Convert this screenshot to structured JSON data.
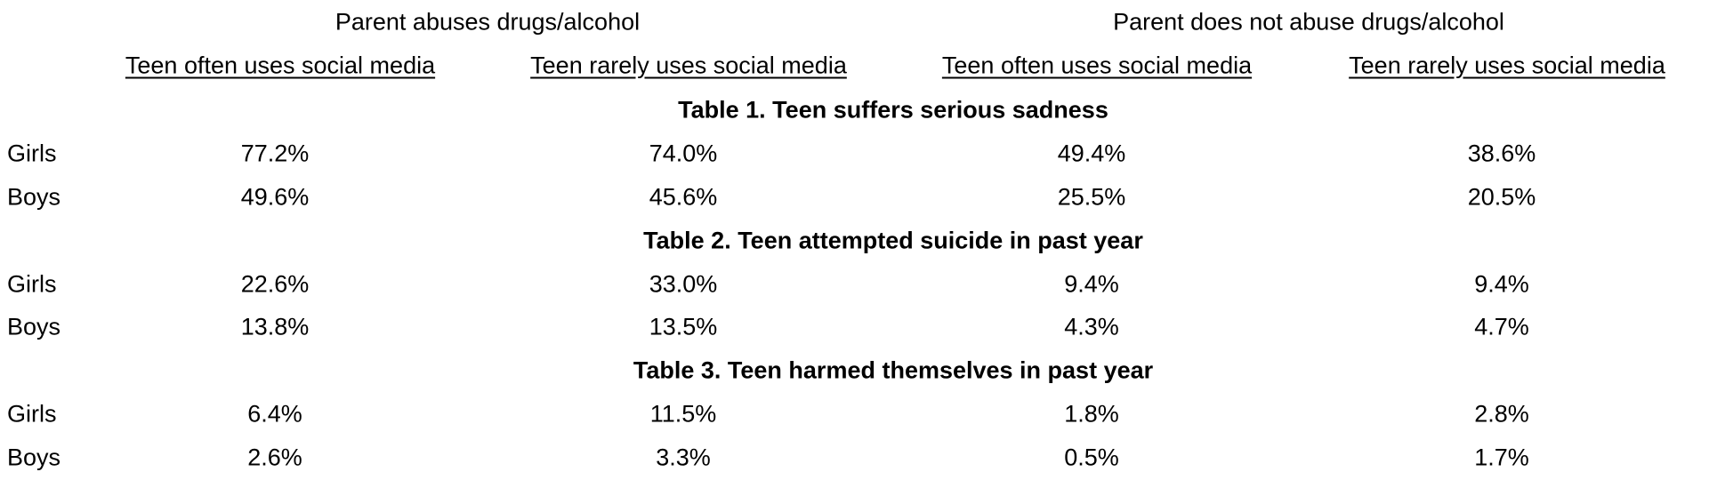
{
  "groups": [
    "Parent abuses drugs/alcohol",
    "Parent does not abuse drugs/alcohol"
  ],
  "columns": [
    "Teen often uses social media",
    "Teen rarely uses social media",
    "Teen often uses social media",
    "Teen rarely uses social media"
  ],
  "sections": [
    {
      "title": "Table 1. Teen suffers serious sadness",
      "rows": [
        {
          "label": "Girls",
          "values": [
            "77.2%",
            "74.0%",
            "49.4%",
            "38.6%"
          ]
        },
        {
          "label": "Boys",
          "values": [
            "49.6%",
            "45.6%",
            "25.5%",
            "20.5%"
          ]
        }
      ]
    },
    {
      "title": "Table 2. Teen attempted suicide in past year",
      "rows": [
        {
          "label": "Girls",
          "values": [
            "22.6%",
            "33.0%",
            "9.4%",
            "9.4%"
          ]
        },
        {
          "label": "Boys",
          "values": [
            "13.8%",
            "13.5%",
            "4.3%",
            "4.7%"
          ]
        }
      ]
    },
    {
      "title": "Table 3. Teen harmed themselves in past year",
      "rows": [
        {
          "label": "Girls",
          "values": [
            "6.4%",
            "11.5%",
            "1.8%",
            "2.8%"
          ]
        },
        {
          "label": "Boys",
          "values": [
            "2.6%",
            "3.3%",
            "0.5%",
            "1.7%"
          ]
        }
      ]
    }
  ]
}
